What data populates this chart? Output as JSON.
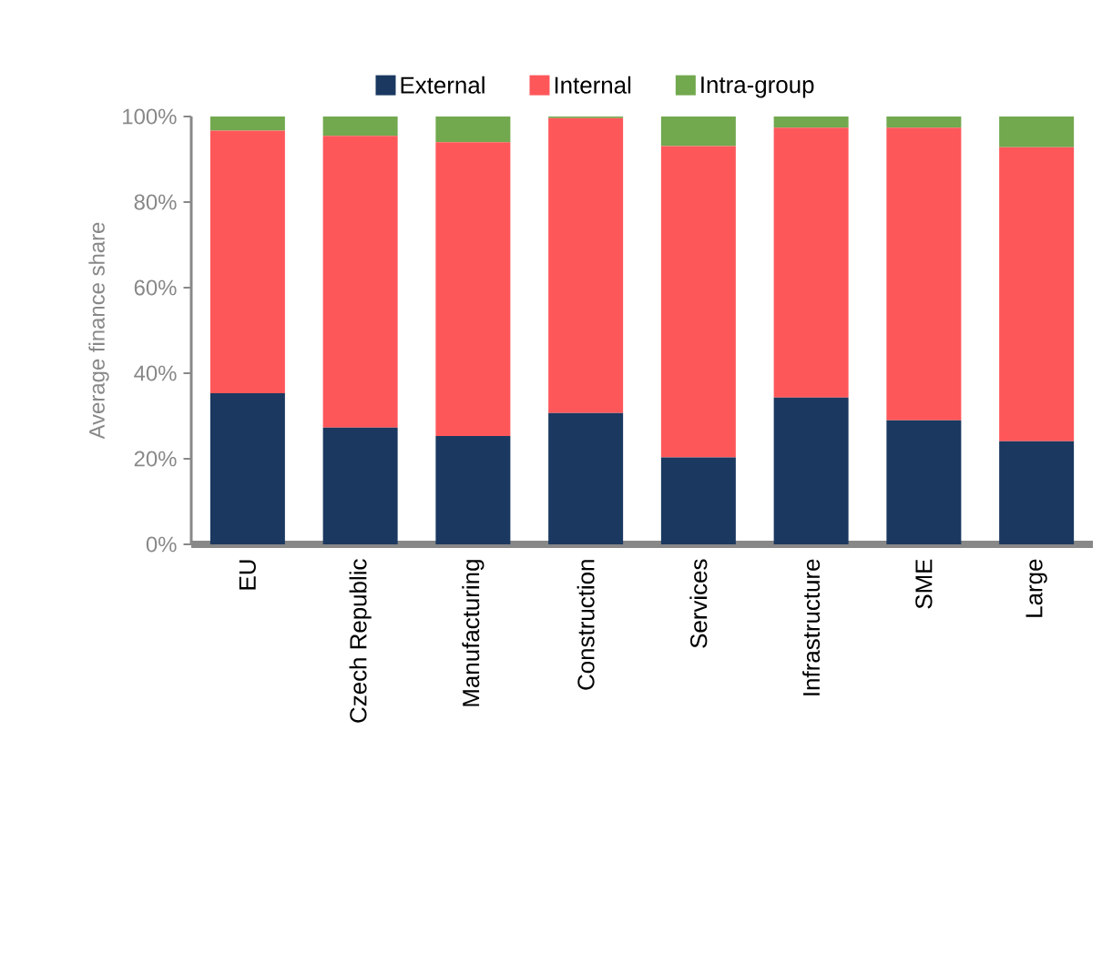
{
  "chart_data": {
    "type": "bar",
    "stacked": true,
    "ylabel": "Average finance share",
    "categories": [
      "EU",
      "Czech Republic",
      "Manufacturing",
      "Construction",
      "Services",
      "Infrastructure",
      "SME",
      "Large"
    ],
    "series": [
      {
        "name": "External",
        "color": "#1a3860",
        "values": [
          35.3,
          27.3,
          25.3,
          30.7,
          20.3,
          34.3,
          29.0,
          24.1
        ]
      },
      {
        "name": "Internal",
        "color": "#fe575a",
        "values": [
          61.4,
          68.2,
          68.7,
          68.9,
          72.8,
          63.1,
          68.4,
          68.7
        ]
      },
      {
        "name": "Intra-group",
        "color": "#72a84e",
        "values": [
          3.3,
          4.5,
          6.0,
          0.4,
          6.9,
          2.6,
          2.6,
          7.2
        ]
      }
    ],
    "ylim": [
      0,
      100
    ],
    "yticks": [
      {
        "value": 0,
        "label": "0%"
      },
      {
        "value": 20,
        "label": "20%"
      },
      {
        "value": 40,
        "label": "40%"
      },
      {
        "value": 60,
        "label": "60%"
      },
      {
        "value": 80,
        "label": "80%"
      },
      {
        "value": 100,
        "label": "100%"
      }
    ],
    "grid": false,
    "legend": "top"
  }
}
